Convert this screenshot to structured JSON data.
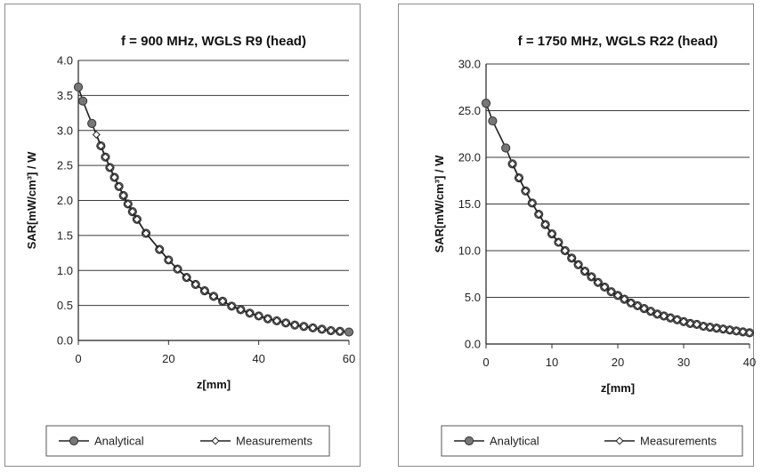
{
  "chart_data": [
    {
      "type": "line",
      "title": "f = 900 MHz, WGLS R9 (head)",
      "xlabel": "z[mm]",
      "ylabel": "SAR[mW/cm³] / W",
      "xlim": [
        0,
        60
      ],
      "ylim": [
        0,
        4.0
      ],
      "xticks": [
        "0",
        "20",
        "40",
        "60"
      ],
      "yticks": [
        "0.0",
        "0.5",
        "1.0",
        "1.5",
        "2.0",
        "2.5",
        "3.0",
        "3.5",
        "4.0"
      ],
      "grid": true,
      "legend_position": "bottom",
      "series": [
        {
          "name": "Analytical",
          "color": "#777777",
          "marker": "filled-circle",
          "x": [
            0,
            1,
            3,
            5,
            6,
            7,
            8,
            9,
            10,
            11,
            12,
            13,
            15,
            18,
            20,
            22,
            24,
            26,
            28,
            30,
            32,
            34,
            36,
            38,
            40,
            42,
            44,
            46,
            48,
            50,
            52,
            54,
            56,
            58,
            60
          ],
          "y": [
            3.62,
            3.42,
            3.1,
            2.78,
            2.62,
            2.47,
            2.33,
            2.2,
            2.07,
            1.95,
            1.84,
            1.73,
            1.53,
            1.3,
            1.15,
            1.02,
            0.9,
            0.8,
            0.71,
            0.63,
            0.56,
            0.49,
            0.44,
            0.39,
            0.35,
            0.31,
            0.28,
            0.25,
            0.22,
            0.2,
            0.18,
            0.16,
            0.14,
            0.13,
            0.12
          ]
        },
        {
          "name": "Measurements",
          "color": "#222222",
          "marker": "open-diamond",
          "x": [
            4,
            5,
            6,
            7,
            8,
            9,
            10,
            11,
            12,
            13,
            15,
            18,
            20,
            22,
            24,
            26,
            28,
            30,
            32,
            34,
            36,
            38,
            40,
            42,
            44,
            46,
            48,
            50,
            52,
            54,
            56,
            58
          ],
          "y": [
            2.94,
            2.78,
            2.62,
            2.47,
            2.33,
            2.2,
            2.07,
            1.95,
            1.84,
            1.73,
            1.53,
            1.3,
            1.15,
            1.02,
            0.9,
            0.8,
            0.71,
            0.63,
            0.56,
            0.49,
            0.44,
            0.39,
            0.35,
            0.31,
            0.28,
            0.25,
            0.22,
            0.2,
            0.18,
            0.16,
            0.14,
            0.13
          ]
        }
      ]
    },
    {
      "type": "line",
      "title": "f = 1750 MHz, WGLS R22 (head)",
      "xlabel": "z[mm]",
      "ylabel": "SAR[mW/cm³] / W",
      "xlim": [
        0,
        40
      ],
      "ylim": [
        0,
        30.0
      ],
      "xticks": [
        "0",
        "10",
        "20",
        "30",
        "40"
      ],
      "yticks": [
        "0.0",
        "5.0",
        "10.0",
        "15.0",
        "20.0",
        "25.0",
        "30.0"
      ],
      "grid": true,
      "legend_position": "bottom",
      "series": [
        {
          "name": "Analytical",
          "color": "#777777",
          "marker": "filled-circle",
          "x": [
            0,
            1,
            3,
            4,
            5,
            6,
            7,
            8,
            9,
            10,
            11,
            12,
            13,
            14,
            15,
            16,
            17,
            18,
            19,
            20,
            21,
            22,
            23,
            24,
            25,
            26,
            27,
            28,
            29,
            30,
            31,
            32,
            33,
            34,
            35,
            36,
            37,
            38,
            39,
            40
          ],
          "y": [
            25.8,
            23.9,
            21.0,
            19.3,
            17.8,
            16.4,
            15.1,
            13.9,
            12.8,
            11.8,
            10.9,
            10.0,
            9.2,
            8.5,
            7.8,
            7.2,
            6.6,
            6.1,
            5.6,
            5.2,
            4.8,
            4.4,
            4.1,
            3.8,
            3.5,
            3.2,
            3.0,
            2.8,
            2.6,
            2.4,
            2.2,
            2.1,
            1.9,
            1.8,
            1.7,
            1.6,
            1.5,
            1.4,
            1.3,
            1.2
          ]
        },
        {
          "name": "Measurements",
          "color": "#222222",
          "marker": "open-diamond",
          "x": [
            4,
            5,
            6,
            7,
            8,
            9,
            10,
            11,
            12,
            13,
            14,
            15,
            16,
            17,
            18,
            19,
            20,
            21,
            22,
            23,
            24,
            25,
            26,
            27,
            28,
            29,
            30,
            31,
            32,
            33,
            34,
            35,
            36,
            37,
            38,
            39,
            40
          ],
          "y": [
            19.3,
            17.8,
            16.4,
            15.1,
            13.9,
            12.8,
            11.8,
            10.9,
            10.0,
            9.2,
            8.5,
            7.8,
            7.2,
            6.6,
            6.1,
            5.6,
            5.2,
            4.8,
            4.4,
            4.1,
            3.8,
            3.5,
            3.2,
            3.0,
            2.8,
            2.6,
            2.4,
            2.2,
            2.1,
            1.9,
            1.8,
            1.7,
            1.6,
            1.5,
            1.4,
            1.3,
            1.2
          ]
        }
      ]
    }
  ]
}
